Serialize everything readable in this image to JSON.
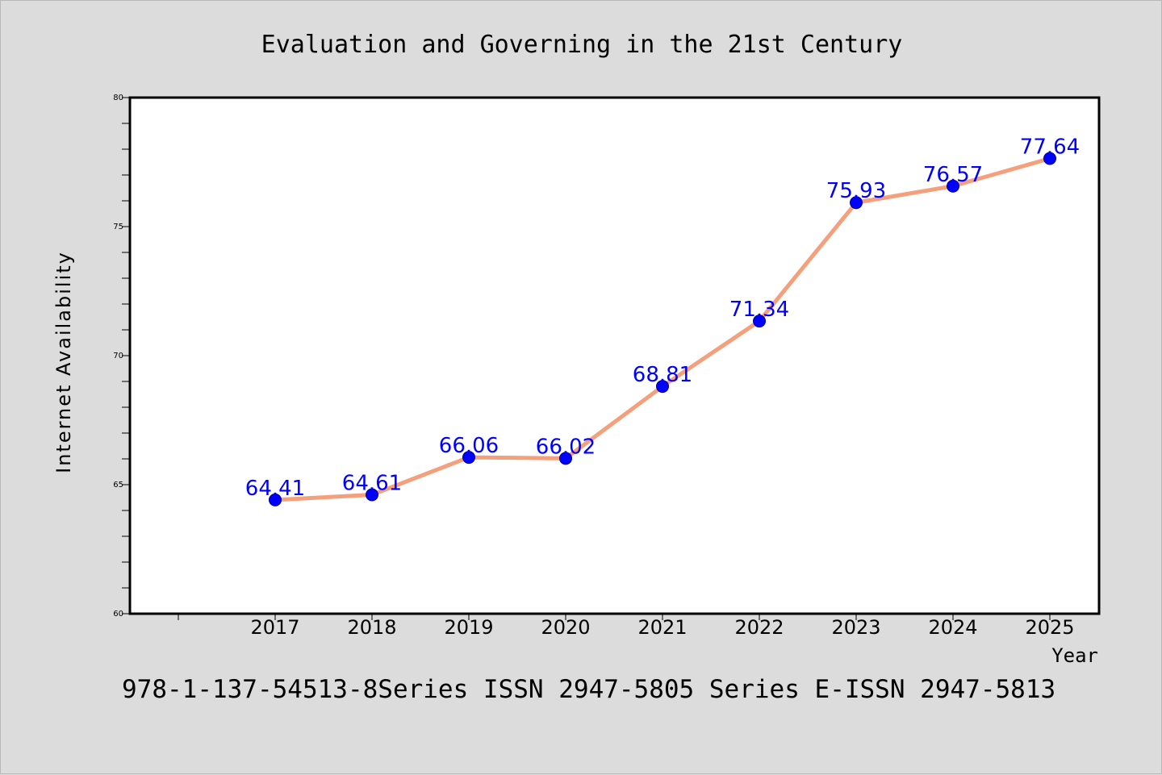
{
  "chart_data": {
    "type": "line",
    "title": "Evaluation and Governing in the 21st Century",
    "xlabel": "Year",
    "ylabel": "Internet Availability",
    "categories": [
      "2017",
      "2018",
      "2019",
      "2020",
      "2021",
      "2022",
      "2023",
      "2024",
      "2025"
    ],
    "series": [
      {
        "values": [
          64.41,
          64.61,
          66.06,
          66.02,
          68.81,
          71.34,
          75.93,
          76.57,
          77.64
        ],
        "labels": [
          "64.41",
          "64.61",
          "66.06",
          "66.02",
          "68.81",
          "71.34",
          "75.93",
          "76.57",
          "77.64"
        ],
        "line_color": "#f4a07c",
        "marker_color": "#0000ff"
      }
    ],
    "ylim": [
      60,
      80
    ],
    "yticks": [
      "60",
      "65",
      "70",
      "75",
      "80"
    ],
    "grid": false,
    "legend": "none"
  },
  "footer": {
    "text": "978-1-137-54513-8Series ISSN 2947-5805 Series E-ISSN 2947-5813"
  },
  "colors": {
    "background": "#dcdcdc",
    "plot_background": "#ffffff"
  }
}
